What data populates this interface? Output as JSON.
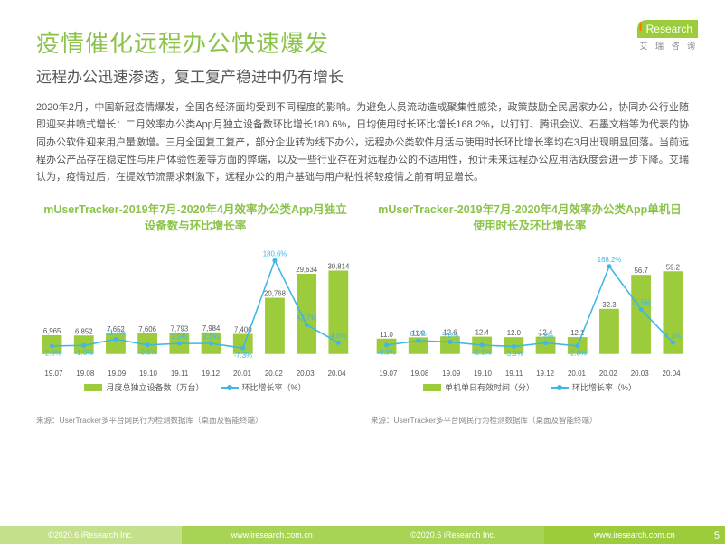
{
  "logo": {
    "brand": "Research",
    "sub": "艾 瑞 咨 询"
  },
  "title": "疫情催化远程办公快速爆发",
  "subtitle": "远程办公迅速渗透，复工复产稳进中仍有增长",
  "body": "2020年2月，中国新冠疫情爆发，全国各经济面均受到不同程度的影响。为避免人员流动造成聚集性感染，政策鼓励全民居家办公，协同办公行业随即迎来井喷式增长：二月效率办公类App月独立设备数环比增长180.6%，日均使用时长环比增长168.2%，以钉钉、腾讯会议、石墨文档等为代表的协同办公软件迎来用户量激增。三月全国复工复产，部分企业转为线下办公，远程办公类软件月活与使用时长环比增长率均在3月出现明显回落。当前远程办公产品存在稳定性与用户体验性差等方面的弊端，以及一些行业存在对远程办公的不适用性，预计未来远程办公应用活跃度会进一步下降。艾瑞认为，疫情过后，在提效节流需求刺激下，远程办公的用户基础与用户粘性将较疫情之前有明显增长。",
  "chart_left": {
    "title": "mUserTracker-2019年7月-2020年4月效率办公类App月独立设备数与环比增长率",
    "type": "bar+line",
    "categories": [
      "19.07",
      "19.08",
      "19.09",
      "19.10",
      "19.11",
      "19.12",
      "20.01",
      "20.02",
      "20.03",
      "20.04"
    ],
    "bar_values": [
      6965,
      6852,
      7652,
      7606,
      7793,
      7984,
      7400,
      20768,
      29634,
      30814
    ],
    "bar_color": "#9ccc3c",
    "bar_y_max": 32000,
    "line_values": [
      -2.8,
      -1.6,
      11.7,
      -0.6,
      2.5,
      2.5,
      -7.3,
      180.6,
      42.7,
      4.0
    ],
    "line_labels": [
      "-2.8%",
      "-1.6%",
      "11.7%",
      "-0.6%",
      "2.5%",
      "2.5%",
      "-7.3%",
      "180.6%",
      "42.7%",
      "4.0%"
    ],
    "line_color": "#41b6e6",
    "line_y_min": -20,
    "line_y_max": 200,
    "legend_bar": "月度总独立设备数（万台）",
    "legend_line": "环比增长率（%）",
    "source": "来源：UserTracker多平台网民行为检测数据库（桌面及智能终端）"
  },
  "chart_right": {
    "title": "mUserTracker-2019年7月-2020年4月效率办公类App单机日使用时长及环比增长率",
    "type": "bar+line",
    "categories": [
      "19.07",
      "19.08",
      "19.09",
      "19.10",
      "19.11",
      "19.12",
      "20.01",
      "20.02",
      "20.03",
      "20.04"
    ],
    "bar_values": [
      11.0,
      11.9,
      12.6,
      12.4,
      12.0,
      12.4,
      12.1,
      32.3,
      56.7,
      59.2
    ],
    "bar_color": "#9ccc3c",
    "bar_y_max": 62,
    "line_values": [
      -0.9,
      8.5,
      5.8,
      -1.1,
      -3.9,
      3.8,
      -2.8,
      168.2,
      75.5,
      4.3
    ],
    "line_labels": [
      "-0.9%",
      "8.5%",
      "5.8%",
      "-1.1%",
      "-3.9%",
      "3.8%",
      "-2.8%",
      "168.2%",
      "75.5%",
      "4.3%"
    ],
    "line_color": "#41b6e6",
    "line_y_min": -20,
    "line_y_max": 200,
    "legend_bar": "单机单日有效时间（分）",
    "legend_line": "环比增长率（%）",
    "source": "来源：UserTracker多平台网民行为检测数据库（桌面及智能终端）"
  },
  "footer": {
    "left": "©2020.6 iResearch Inc.",
    "center": "www.iresearch.com.cn",
    "right": "©2020.6 iResearch Inc.",
    "right2": "www.iresearch.com.cn",
    "page": "5"
  },
  "colors": {
    "green": "#9ccc3c",
    "blue": "#41b6e6",
    "text": "#555555"
  }
}
